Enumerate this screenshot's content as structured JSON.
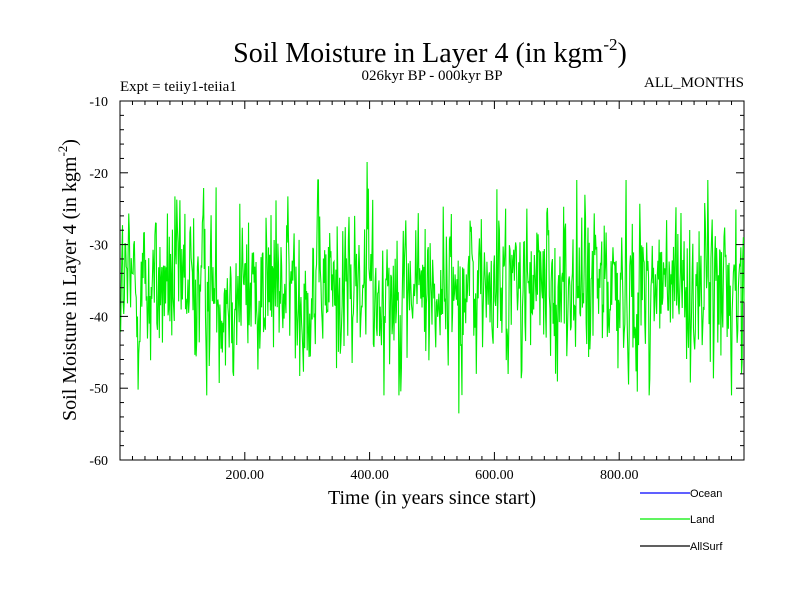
{
  "chart_data": {
    "type": "line",
    "title": "Soil Moisture in Layer 4 (in kgm",
    "title_sup": "-2",
    "title_close": ")",
    "subtitle_left": "Expt = teiiy1-teiia1",
    "subtitle_center": "026kyr BP - 000kyr BP",
    "subtitle_right": "ALL_MONTHS",
    "xlabel": "Time (in years since start)",
    "ylabel": "Soil Moisture in Layer 4 (in kgm",
    "ylabel_sup": "-2",
    "ylabel_close": ")",
    "xlim": [
      0,
      1000
    ],
    "ylim": [
      -60,
      -10
    ],
    "x_ticks": [
      200,
      400,
      600,
      800
    ],
    "x_tick_labels": [
      "200.00",
      "400.00",
      "600.00",
      "800.00"
    ],
    "y_ticks": [
      -60,
      -50,
      -40,
      -30,
      -20,
      -10
    ],
    "y_tick_labels": [
      "-60",
      "-50",
      "-40",
      "-30",
      "-20",
      "-10"
    ],
    "grid": false,
    "legend_position": "bottom-right, below plot",
    "series": [
      {
        "name": "Ocean",
        "color": "#0000ff",
        "values": []
      },
      {
        "name": "Land",
        "color": "#00ee00",
        "description": "noisy annual series fluctuating about -36, mostly between -48 and -24; peak -18.5 near x=396, minimum -53.5 near x=543",
        "mean": -36,
        "typical_range": [
          -48,
          -24
        ],
        "max": {
          "x": 396,
          "y": -18.5
        },
        "min": {
          "x": 543,
          "y": -53.5
        },
        "x_start": 1,
        "x_end": 1000,
        "noise_seed": 12345
      },
      {
        "name": "AllSurf",
        "color": "#000000",
        "values": []
      }
    ]
  }
}
